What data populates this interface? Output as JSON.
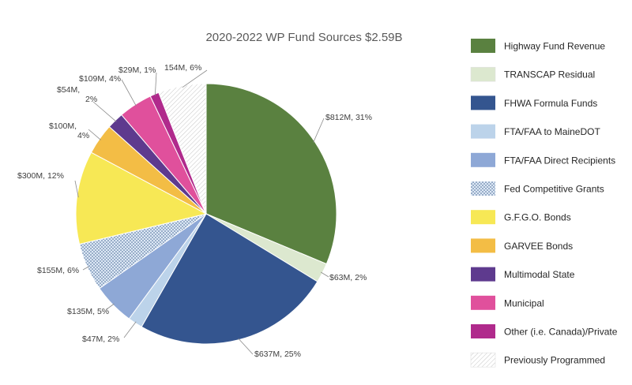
{
  "chart_data": {
    "type": "pie",
    "title": "2020-2022 WP Fund Sources $2.59B",
    "legend_position": "right",
    "slices": [
      {
        "name": "Highway Fund Revenue",
        "value": 812,
        "percent": 31,
        "label": "$812M, 31%",
        "color": "#5a8140",
        "pattern": "solid"
      },
      {
        "name": "TRANSCAP Residual",
        "value": 63,
        "percent": 2,
        "label": "$63M, 2%",
        "color": "#dce8cf",
        "pattern": "solid"
      },
      {
        "name": "FHWA Formula Funds",
        "value": 637,
        "percent": 25,
        "label": "$637M, 25%",
        "color": "#34558f",
        "pattern": "solid"
      },
      {
        "name": "FTA/FAA to MaineDOT",
        "value": 47,
        "percent": 2,
        "label": "$47M, 2%",
        "color": "#bcd3ea",
        "pattern": "solid"
      },
      {
        "name": "FTA/FAA Direct Recipients",
        "value": 135,
        "percent": 5,
        "label": "$135M, 5%",
        "color": "#8ea8d6",
        "pattern": "solid"
      },
      {
        "name": "Fed Competitive Grants",
        "value": 155,
        "percent": 6,
        "label": "$155M, 6%",
        "color": "#c7d9ef",
        "pattern": "dots"
      },
      {
        "name": "G.F.G.O. Bonds",
        "value": 300,
        "percent": 12,
        "label": "$300M, 12%",
        "color": "#f7e855",
        "pattern": "solid"
      },
      {
        "name": "GARVEE Bonds",
        "value": 100,
        "percent": 4,
        "label": "$100M, 4%",
        "color": "#f3bd45",
        "pattern": "solid"
      },
      {
        "name": "Multimodal State",
        "value": 54,
        "percent": 2,
        "label": "$54M, 2%",
        "color": "#5e3a8e",
        "pattern": "solid"
      },
      {
        "name": "Municipal",
        "value": 109,
        "percent": 4,
        "label": "$109M, 4%",
        "color": "#e0509c",
        "pattern": "solid"
      },
      {
        "name": "Other (i.e. Canada)/Private",
        "value": 29,
        "percent": 1,
        "label": "$29M, 1%",
        "color": "#b02a8c",
        "pattern": "solid"
      },
      {
        "name": "Previously Programmed",
        "value": 154,
        "percent": 6,
        "label": "154M, 6%",
        "color": "#ffffff",
        "pattern": "hatch"
      }
    ]
  }
}
